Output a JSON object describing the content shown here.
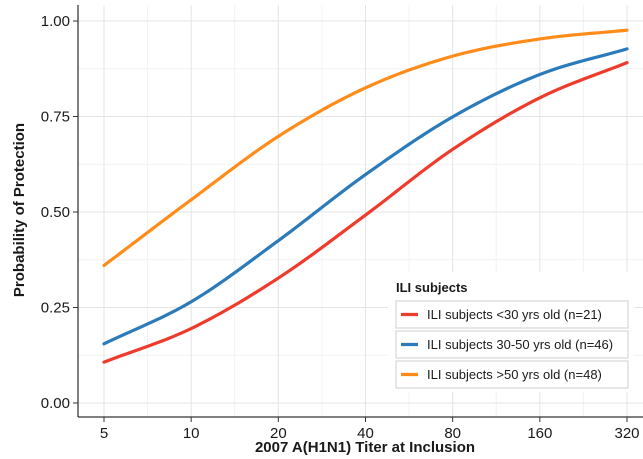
{
  "chart_data": {
    "type": "line",
    "xlabel": "2007 A(H1N1) Titer at Inclusion",
    "ylabel": "Probability of Protection",
    "x_scale": "log2",
    "x_ticks": [
      5,
      10,
      20,
      40,
      80,
      160,
      320
    ],
    "x_tick_labels": [
      "5",
      "10",
      "20",
      "40",
      "80",
      "160",
      "320"
    ],
    "xlim": [
      5,
      320
    ],
    "y_ticks": [
      0,
      0.25,
      0.5,
      0.75,
      1.0
    ],
    "y_tick_labels": [
      "0.00",
      "0.25",
      "0.50",
      "0.75",
      "1.00"
    ],
    "ylim": [
      0,
      1.0
    ],
    "grid": true,
    "legend": {
      "title": "ILI subjects",
      "placement": "bottom-right"
    },
    "x": [
      5,
      10,
      20,
      40,
      80,
      160,
      320
    ],
    "series": [
      {
        "name": "ILI subjects <30 yrs old (n=21)",
        "color": "#ef3b2c",
        "values": [
          0.107,
          0.195,
          0.327,
          0.492,
          0.664,
          0.799,
          0.891
        ]
      },
      {
        "name": "ILI subjects 30-50 yrs old (n=46)",
        "color": "#2b7bba",
        "values": [
          0.155,
          0.265,
          0.425,
          0.598,
          0.749,
          0.86,
          0.927
        ]
      },
      {
        "name": "ILI subjects >50 yrs old (n=48)",
        "color": "#ff8c1a",
        "values": [
          0.36,
          0.532,
          0.698,
          0.825,
          0.908,
          0.953,
          0.976
        ]
      }
    ]
  }
}
